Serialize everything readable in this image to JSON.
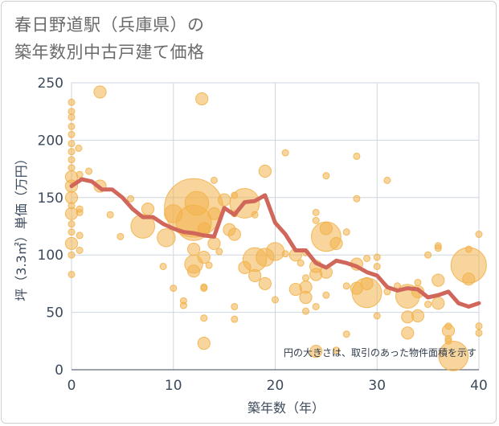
{
  "title_line1": "春日野道駅（兵庫県）の",
  "title_line2": "築年数別中古戸建て価格",
  "chart_data": {
    "type": "scatter",
    "title": "春日野道駅（兵庫県）の築年数別中古戸建て価格",
    "xlabel": "築年数（年）",
    "ylabel": "坪（3.3㎡）単価（万円）",
    "xlim": [
      0,
      40
    ],
    "ylim": [
      0,
      250
    ],
    "x_ticks": [
      0,
      10,
      20,
      30,
      40
    ],
    "y_ticks": [
      0,
      50,
      100,
      150,
      200,
      250
    ],
    "grid": true,
    "note": "円の大きさは、取引のあった物件面積を示す",
    "bubble_color": "#f2b24c",
    "line_color": "#d0675a",
    "series": [
      {
        "kind": "bubbles",
        "points": [
          {
            "x": 0,
            "y": 233,
            "s": 1
          },
          {
            "x": 0,
            "y": 225,
            "s": 1
          },
          {
            "x": 0,
            "y": 220,
            "s": 1
          },
          {
            "x": 0,
            "y": 212,
            "s": 1
          },
          {
            "x": 0,
            "y": 205,
            "s": 1
          },
          {
            "x": 0,
            "y": 197,
            "s": 1
          },
          {
            "x": 0,
            "y": 190,
            "s": 1
          },
          {
            "x": 0,
            "y": 183,
            "s": 1
          },
          {
            "x": 0,
            "y": 176,
            "s": 1
          },
          {
            "x": 0,
            "y": 168,
            "s": 2
          },
          {
            "x": 0,
            "y": 160,
            "s": 2
          },
          {
            "x": 0,
            "y": 150,
            "s": 2
          },
          {
            "x": 0,
            "y": 143,
            "s": 1
          },
          {
            "x": 0,
            "y": 136,
            "s": 2
          },
          {
            "x": 0,
            "y": 127,
            "s": 1
          },
          {
            "x": 0,
            "y": 120,
            "s": 1
          },
          {
            "x": 0,
            "y": 110,
            "s": 2
          },
          {
            "x": 0,
            "y": 100,
            "s": 1
          },
          {
            "x": 0,
            "y": 83,
            "s": 1
          },
          {
            "x": 0.7,
            "y": 193,
            "s": 1
          },
          {
            "x": 0.8,
            "y": 170,
            "s": 1
          },
          {
            "x": 0.8,
            "y": 140,
            "s": 1
          },
          {
            "x": 0.8,
            "y": 137,
            "s": 1
          },
          {
            "x": 0.8,
            "y": 117,
            "s": 1
          },
          {
            "x": 0.8,
            "y": 104,
            "s": 1
          },
          {
            "x": 1.7,
            "y": 173,
            "s": 1
          },
          {
            "x": 2.8,
            "y": 242,
            "s": 2
          },
          {
            "x": 2.8,
            "y": 160,
            "s": 2
          },
          {
            "x": 3.8,
            "y": 135,
            "s": 1
          },
          {
            "x": 4.8,
            "y": 116,
            "s": 1
          },
          {
            "x": 5.8,
            "y": 149,
            "s": 1
          },
          {
            "x": 7,
            "y": 125,
            "s": 4
          },
          {
            "x": 7.5,
            "y": 140,
            "s": 2
          },
          {
            "x": 9,
            "y": 90,
            "s": 1
          },
          {
            "x": 9.3,
            "y": 115,
            "s": 3
          },
          {
            "x": 10,
            "y": 136,
            "s": 3
          },
          {
            "x": 10,
            "y": 71,
            "s": 1
          },
          {
            "x": 11,
            "y": 60,
            "s": 1
          },
          {
            "x": 11,
            "y": 56,
            "s": 1
          },
          {
            "x": 12,
            "y": 141,
            "s": 10
          },
          {
            "x": 12,
            "y": 128,
            "s": 6
          },
          {
            "x": 12,
            "y": 105,
            "s": 2
          },
          {
            "x": 12,
            "y": 92,
            "s": 3
          },
          {
            "x": 12,
            "y": 86,
            "s": 2
          },
          {
            "x": 12.3,
            "y": 145,
            "s": 4
          },
          {
            "x": 12.8,
            "y": 236,
            "s": 2
          },
          {
            "x": 13,
            "y": 123,
            "s": 2
          },
          {
            "x": 13,
            "y": 98,
            "s": 2
          },
          {
            "x": 13,
            "y": 72,
            "s": 1
          },
          {
            "x": 13,
            "y": 71,
            "s": 1
          },
          {
            "x": 13,
            "y": 45,
            "s": 1
          },
          {
            "x": 13,
            "y": 23,
            "s": 2
          },
          {
            "x": 13.5,
            "y": 91,
            "s": 1
          },
          {
            "x": 14,
            "y": 165,
            "s": 1
          },
          {
            "x": 14,
            "y": 136,
            "s": 2
          },
          {
            "x": 14,
            "y": 110,
            "s": 2
          },
          {
            "x": 14.5,
            "y": 103,
            "s": 1
          },
          {
            "x": 15,
            "y": 148,
            "s": 2
          },
          {
            "x": 15.5,
            "y": 122,
            "s": 2
          },
          {
            "x": 16,
            "y": 152,
            "s": 1
          },
          {
            "x": 16,
            "y": 136,
            "s": 1
          },
          {
            "x": 16,
            "y": 118,
            "s": 2
          },
          {
            "x": 16,
            "y": 55,
            "s": 1
          },
          {
            "x": 16,
            "y": 44,
            "s": 1
          },
          {
            "x": 17,
            "y": 145,
            "s": 5
          },
          {
            "x": 17,
            "y": 89,
            "s": 2
          },
          {
            "x": 18,
            "y": 96,
            "s": 4
          },
          {
            "x": 18,
            "y": 82,
            "s": 2
          },
          {
            "x": 18,
            "y": 135,
            "s": 1
          },
          {
            "x": 19,
            "y": 173,
            "s": 2
          },
          {
            "x": 19,
            "y": 98,
            "s": 3
          },
          {
            "x": 19,
            "y": 75,
            "s": 2
          },
          {
            "x": 20,
            "y": 103,
            "s": 3
          },
          {
            "x": 20,
            "y": 61,
            "s": 1
          },
          {
            "x": 21,
            "y": 189,
            "s": 1
          },
          {
            "x": 21,
            "y": 101,
            "s": 1
          },
          {
            "x": 22,
            "y": 100,
            "s": 2
          },
          {
            "x": 22,
            "y": 70,
            "s": 2
          },
          {
            "x": 22.5,
            "y": 93,
            "s": 1
          },
          {
            "x": 23,
            "y": 102,
            "s": 1
          },
          {
            "x": 23,
            "y": 80,
            "s": 1
          },
          {
            "x": 23,
            "y": 72,
            "s": 2
          },
          {
            "x": 23,
            "y": 63,
            "s": 2
          },
          {
            "x": 23,
            "y": 51,
            "s": 1
          },
          {
            "x": 24,
            "y": 137,
            "s": 1
          },
          {
            "x": 24,
            "y": 130,
            "s": 1
          },
          {
            "x": 24,
            "y": 90,
            "s": 2
          },
          {
            "x": 24,
            "y": 83,
            "s": 2
          },
          {
            "x": 24,
            "y": 55,
            "s": 1
          },
          {
            "x": 24,
            "y": 16,
            "s": 2
          },
          {
            "x": 25,
            "y": 169,
            "s": 1
          },
          {
            "x": 25,
            "y": 123,
            "s": 2
          },
          {
            "x": 25,
            "y": 116,
            "s": 5
          },
          {
            "x": 25,
            "y": 85,
            "s": 2
          },
          {
            "x": 25,
            "y": 65,
            "s": 1
          },
          {
            "x": 26,
            "y": 110,
            "s": 2
          },
          {
            "x": 26,
            "y": 17,
            "s": 1
          },
          {
            "x": 27,
            "y": 120,
            "s": 1
          },
          {
            "x": 27,
            "y": 73,
            "s": 1
          },
          {
            "x": 27,
            "y": 31,
            "s": 1
          },
          {
            "x": 28,
            "y": 186,
            "s": 1
          },
          {
            "x": 28,
            "y": 149,
            "s": 1
          },
          {
            "x": 28,
            "y": 92,
            "s": 2
          },
          {
            "x": 28,
            "y": 71,
            "s": 2
          },
          {
            "x": 29,
            "y": 97,
            "s": 1
          },
          {
            "x": 29,
            "y": 75,
            "s": 2
          },
          {
            "x": 29,
            "y": 67,
            "s": 5
          },
          {
            "x": 30,
            "y": 98,
            "s": 1
          },
          {
            "x": 30,
            "y": 90,
            "s": 1
          },
          {
            "x": 30,
            "y": 47,
            "s": 1
          },
          {
            "x": 31,
            "y": 165,
            "s": 1
          },
          {
            "x": 31,
            "y": 68,
            "s": 1
          },
          {
            "x": 32,
            "y": 73,
            "s": 1
          },
          {
            "x": 33,
            "y": 64,
            "s": 4
          },
          {
            "x": 33,
            "y": 46,
            "s": 2
          },
          {
            "x": 33,
            "y": 32,
            "s": 2
          },
          {
            "x": 34,
            "y": 76,
            "s": 1
          },
          {
            "x": 34,
            "y": 68,
            "s": 2
          },
          {
            "x": 34,
            "y": 47,
            "s": 2
          },
          {
            "x": 35,
            "y": 100,
            "s": 1
          },
          {
            "x": 35,
            "y": 57,
            "s": 1
          },
          {
            "x": 36,
            "y": 108,
            "s": 1
          },
          {
            "x": 36,
            "y": 106,
            "s": 1
          },
          {
            "x": 36,
            "y": 78,
            "s": 2
          },
          {
            "x": 36,
            "y": 58,
            "s": 2
          },
          {
            "x": 37,
            "y": 38,
            "s": 1
          },
          {
            "x": 37,
            "y": 34,
            "s": 2
          },
          {
            "x": 37,
            "y": 27,
            "s": 1
          },
          {
            "x": 37,
            "y": 25,
            "s": 1
          },
          {
            "x": 37.5,
            "y": 12,
            "s": 5
          },
          {
            "x": 39,
            "y": 91,
            "s": 6
          },
          {
            "x": 39,
            "y": 79,
            "s": 2
          },
          {
            "x": 39,
            "y": 105,
            "s": 1
          },
          {
            "x": 40,
            "y": 118,
            "s": 1
          },
          {
            "x": 40,
            "y": 38,
            "s": 1
          },
          {
            "x": 40,
            "y": 32,
            "s": 1
          }
        ]
      },
      {
        "kind": "line",
        "x": [
          0,
          1,
          2,
          3,
          4,
          5,
          6,
          7,
          8,
          9,
          10,
          11,
          12,
          13,
          14,
          15,
          16,
          17,
          18,
          19,
          20,
          21,
          22,
          23,
          24,
          25,
          26,
          27,
          28,
          29,
          30,
          31,
          32,
          33,
          34,
          35,
          36,
          37,
          38,
          39,
          40
        ],
        "values": [
          160,
          166,
          164,
          157,
          157,
          150,
          140,
          133,
          133,
          127,
          123,
          120,
          119,
          117,
          116,
          141,
          135,
          146,
          147,
          152,
          128,
          118,
          104,
          104,
          93,
          89,
          95,
          93,
          90,
          85,
          82,
          72,
          69,
          71,
          70,
          63,
          65,
          68,
          58,
          55,
          58
        ]
      }
    ]
  }
}
